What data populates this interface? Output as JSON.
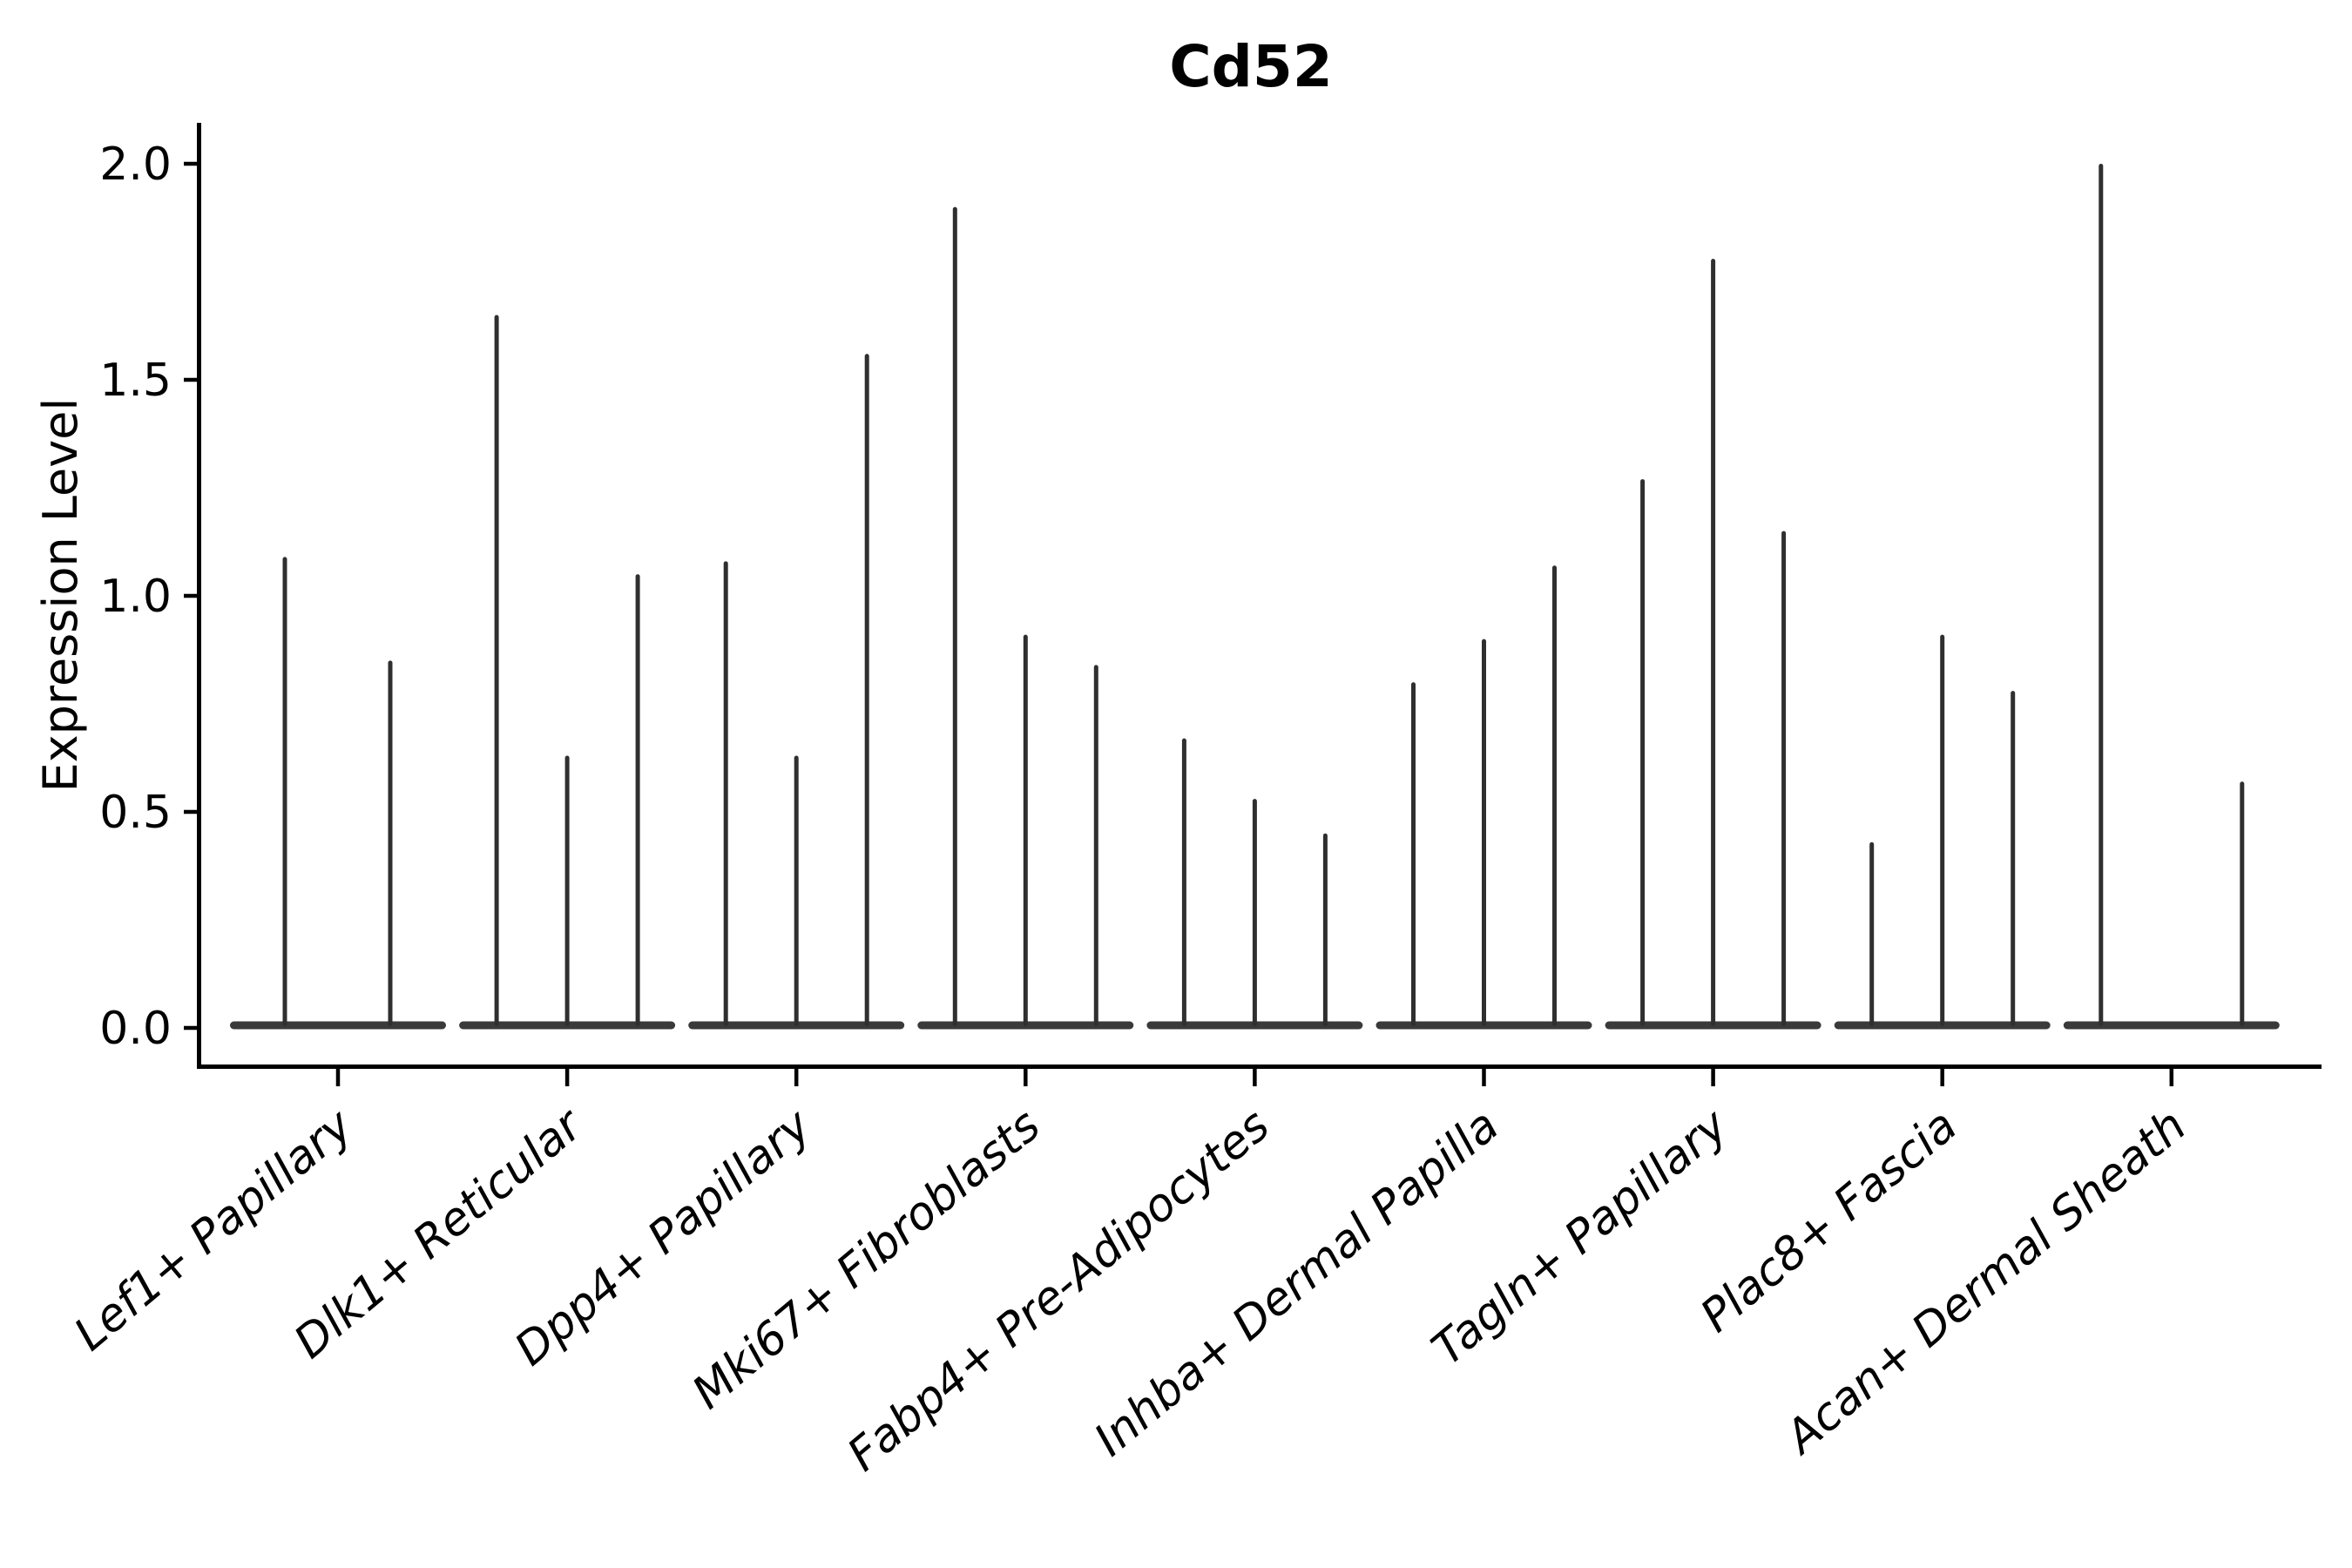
{
  "title": "Cd52",
  "ylabel": "Expression Level",
  "chart_data": {
    "type": "violin",
    "title": "Cd52",
    "xlabel": "",
    "ylabel": "Expression Level",
    "ylim": [
      0.0,
      2.05
    ],
    "grid": false,
    "legend": false,
    "background": "#ffffff",
    "axis_color": "#000000",
    "spike_color": "#2f2f2f",
    "base_color": "#3a3a3a",
    "ytick_labels": [
      "0.0",
      "0.5",
      "1.0",
      "1.5",
      "2.0"
    ],
    "ytick_values": [
      0.0,
      0.5,
      1.0,
      1.5,
      2.0
    ],
    "categories": [
      "Lef1+ Papillary",
      "Dlk1+ Reticular",
      "Dpp4+ Papillary",
      "Mki67+ Fibroblasts",
      "Fabp4+ Pre-Adipocytes",
      "Inhba+ Dermal Papilla",
      "Tagln+ Papillary",
      "Plac8+ Fascia",
      "Acan+ Dermal Sheath"
    ],
    "groups": [
      {
        "category": "Lef1+ Papillary",
        "violins": [
          {
            "offset": -61,
            "max": 1.09
          },
          {
            "offset": 60,
            "max": 0.85
          }
        ]
      },
      {
        "category": "Dlk1+ Reticular",
        "violins": [
          {
            "offset": -81,
            "max": 1.65
          },
          {
            "offset": 0,
            "max": 0.63
          },
          {
            "offset": 81,
            "max": 1.05
          }
        ]
      },
      {
        "category": "Dpp4+ Papillary",
        "violins": [
          {
            "offset": -81,
            "max": 1.08
          },
          {
            "offset": 0,
            "max": 0.63
          },
          {
            "offset": 81,
            "max": 1.56
          }
        ]
      },
      {
        "category": "Mki67+ Fibroblasts",
        "violins": [
          {
            "offset": -81,
            "max": 1.9
          },
          {
            "offset": 0,
            "max": 0.91
          },
          {
            "offset": 81,
            "max": 0.84
          }
        ]
      },
      {
        "category": "Fabp4+ Pre-Adipocytes",
        "violins": [
          {
            "offset": -81,
            "max": 0.67
          },
          {
            "offset": 0,
            "max": 0.53
          },
          {
            "offset": 81,
            "max": 0.45
          }
        ]
      },
      {
        "category": "Inhba+ Dermal Papilla",
        "violins": [
          {
            "offset": -81,
            "max": 0.8
          },
          {
            "offset": 0,
            "max": 0.9
          },
          {
            "offset": 81,
            "max": 1.07
          }
        ]
      },
      {
        "category": "Tagln+ Papillary",
        "violins": [
          {
            "offset": -81,
            "max": 1.27
          },
          {
            "offset": 0,
            "max": 1.78
          },
          {
            "offset": 81,
            "max": 1.15
          }
        ]
      },
      {
        "category": "Plac8+ Fascia",
        "violins": [
          {
            "offset": -81,
            "max": 0.43
          },
          {
            "offset": 0,
            "max": 0.91
          },
          {
            "offset": 81,
            "max": 0.78
          }
        ]
      },
      {
        "category": "Acan+ Dermal Sheath",
        "violins": [
          {
            "offset": -81,
            "max": 2.0
          },
          {
            "offset": 81,
            "max": 0.57
          }
        ]
      }
    ]
  }
}
